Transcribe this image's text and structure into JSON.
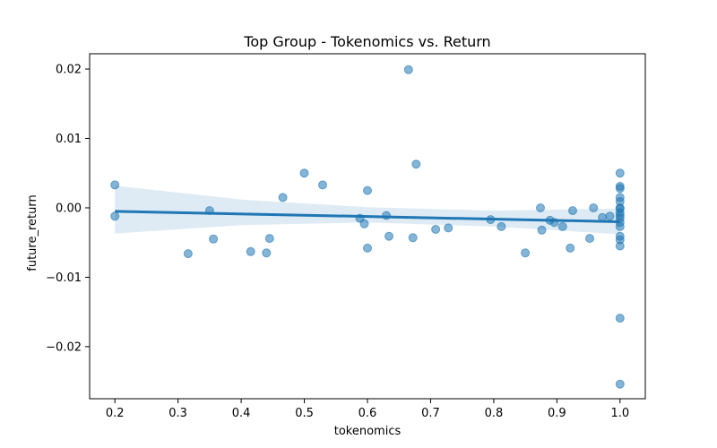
{
  "chart_data": {
    "type": "scatter",
    "title": "Top Group - Tokenomics vs. Return",
    "xlabel": "tokenomics",
    "ylabel": "future_return",
    "xlim": [
      0.16,
      1.04
    ],
    "ylim": [
      -0.0275,
      0.0222
    ],
    "xticks": [
      0.2,
      0.3,
      0.4,
      0.5,
      0.6,
      0.7,
      0.8,
      0.9,
      1.0
    ],
    "xtick_labels": [
      "0.2",
      "0.3",
      "0.4",
      "0.5",
      "0.6",
      "0.7",
      "0.8",
      "0.9",
      "1.0"
    ],
    "yticks": [
      -0.02,
      -0.01,
      0.0,
      0.01,
      0.02
    ],
    "ytick_labels": [
      "−0.02",
      "−0.01",
      "0.00",
      "0.01",
      "0.02"
    ],
    "grid": false,
    "colors": {
      "points": "#1f77b4",
      "line": "#1f77b4",
      "band": "#1f77b4"
    },
    "points": [
      [
        0.2,
        0.0033
      ],
      [
        0.2,
        -0.0012
      ],
      [
        0.316,
        -0.0066
      ],
      [
        0.35,
        -0.0004
      ],
      [
        0.356,
        -0.0045
      ],
      [
        0.415,
        -0.0063
      ],
      [
        0.44,
        -0.0065
      ],
      [
        0.445,
        -0.0044
      ],
      [
        0.466,
        0.0015
      ],
      [
        0.5,
        0.005
      ],
      [
        0.529,
        0.0033
      ],
      [
        0.588,
        -0.0015
      ],
      [
        0.595,
        -0.0023
      ],
      [
        0.6,
        0.0025
      ],
      [
        0.6,
        -0.0058
      ],
      [
        0.63,
        -0.0011
      ],
      [
        0.634,
        -0.0041
      ],
      [
        0.665,
        0.0199
      ],
      [
        0.672,
        -0.0043
      ],
      [
        0.677,
        0.0063
      ],
      [
        0.708,
        -0.0031
      ],
      [
        0.728,
        -0.0029
      ],
      [
        0.795,
        -0.0017
      ],
      [
        0.812,
        -0.0027
      ],
      [
        0.85,
        -0.0065
      ],
      [
        0.874,
        0.0
      ],
      [
        0.876,
        -0.0032
      ],
      [
        0.889,
        -0.0018
      ],
      [
        0.896,
        -0.0021
      ],
      [
        0.909,
        -0.0027
      ],
      [
        0.921,
        -0.0058
      ],
      [
        0.925,
        -0.0004
      ],
      [
        0.952,
        -0.0044
      ],
      [
        0.958,
        0.0
      ],
      [
        0.972,
        -0.0014
      ],
      [
        0.984,
        -0.0012
      ],
      [
        1.0,
        0.005
      ],
      [
        1.0,
        0.0031
      ],
      [
        1.0,
        0.0028
      ],
      [
        1.0,
        0.0015
      ],
      [
        1.0,
        0.0009
      ],
      [
        1.0,
        0.0
      ],
      [
        1.0,
        -0.0001
      ],
      [
        1.0,
        -0.0007
      ],
      [
        1.0,
        -0.0011
      ],
      [
        1.0,
        -0.0015
      ],
      [
        1.0,
        -0.0021
      ],
      [
        1.0,
        -0.0027
      ],
      [
        1.0,
        -0.0041
      ],
      [
        1.0,
        -0.0046
      ],
      [
        1.0,
        -0.0055
      ],
      [
        1.0,
        -0.0159
      ],
      [
        1.0,
        -0.0254
      ]
    ],
    "regression": {
      "x": [
        0.2,
        1.0
      ],
      "y": [
        -0.0005,
        -0.002
      ],
      "ci_x": [
        0.2,
        0.4,
        0.6,
        0.8,
        1.0
      ],
      "ci_upper": [
        0.0032,
        0.0012,
        0.0001,
        -0.0004,
        -0.0001
      ],
      "ci_lower": [
        -0.0037,
        -0.0025,
        -0.0021,
        -0.0027,
        -0.0038
      ]
    }
  }
}
